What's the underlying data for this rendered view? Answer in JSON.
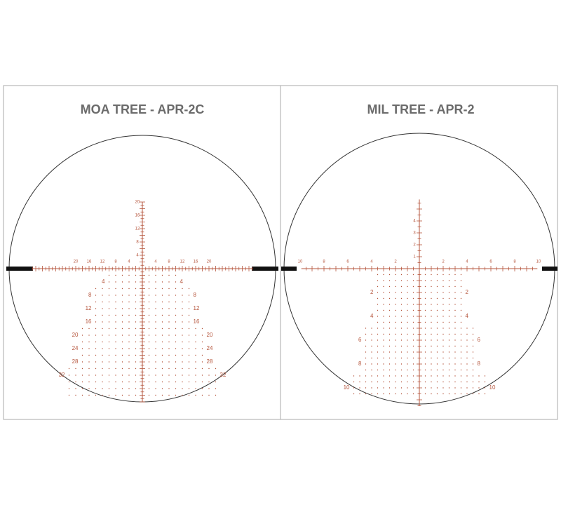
{
  "panels": [
    {
      "title": "MOA TREE - APR-2C",
      "horizontal_labels": [
        "20",
        "16",
        "12",
        "8",
        "4",
        "4",
        "8",
        "12",
        "16",
        "20"
      ],
      "vertical_labels": [
        "20",
        "16",
        "12",
        "8",
        "4"
      ],
      "tree_labels": [
        "4",
        "8",
        "12",
        "16",
        "20",
        "24",
        "28",
        "32"
      ]
    },
    {
      "title": "MIL TREE - APR-2",
      "horizontal_labels": [
        "10",
        "8",
        "6",
        "4",
        "2",
        "2",
        "4",
        "6",
        "8",
        "10"
      ],
      "vertical_labels": [
        "4",
        "3",
        "2",
        "1"
      ],
      "tree_labels": [
        "2",
        "4",
        "6",
        "8",
        "10"
      ]
    }
  ]
}
